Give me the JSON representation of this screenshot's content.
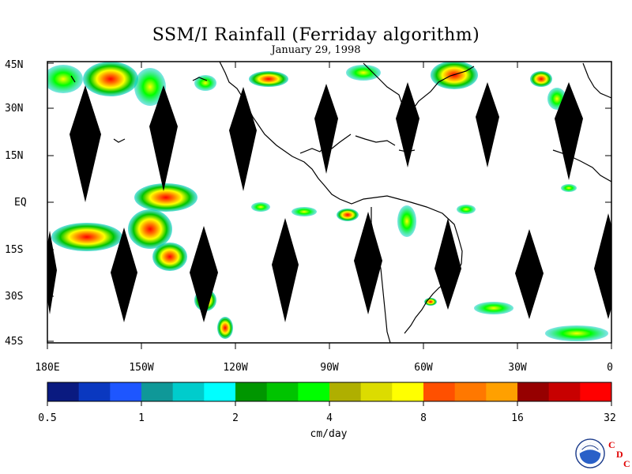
{
  "title": "SSM/I Rainfall (Ferriday algorithm)",
  "subtitle": "January 29, 1998",
  "y_axis_labels": [
    "45N",
    "30N",
    "15N",
    "EQ",
    "15S",
    "30S",
    "45S"
  ],
  "x_axis_labels": [
    "180E",
    "150W",
    "120W",
    "90W",
    "60W",
    "30W",
    "0"
  ],
  "colorbar": {
    "tick_labels": [
      "0.5",
      "1",
      "2",
      "4",
      "8",
      "16",
      "32"
    ],
    "unit": "cm/day",
    "colors": [
      "#0a1a80",
      "#0a38c0",
      "#1e56ff",
      "#0f9898",
      "#00cccc",
      "#00ffff",
      "#009600",
      "#00c400",
      "#00ff00",
      "#afaf00",
      "#dcdc00",
      "#ffff00",
      "#ff5000",
      "#ff7800",
      "#ffa000",
      "#960000",
      "#c80000",
      "#ff0000"
    ]
  },
  "logo": {
    "agency": "NOAA",
    "letters": [
      "C",
      "D",
      "C"
    ]
  },
  "map": {
    "land_color": "#000000",
    "swath_gap_color": "#000000",
    "background": "#ffffff"
  }
}
